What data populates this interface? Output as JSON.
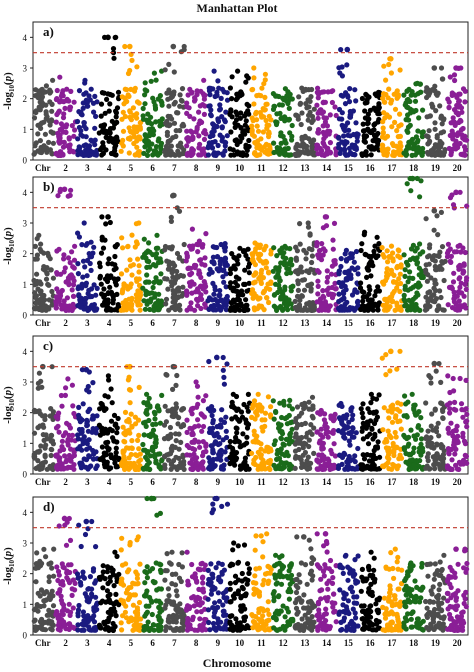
{
  "figure": {
    "title": "Manhattan Plot",
    "xlabel": "Chromosome"
  },
  "chart_data": {
    "type": "scatter",
    "chromosomes": [
      "1",
      "2",
      "3",
      "4",
      "5",
      "6",
      "7",
      "8",
      "9",
      "10",
      "11",
      "12",
      "13",
      "14",
      "15",
      "16",
      "17",
      "18",
      "19",
      "20"
    ],
    "chromosome_tick_labels": [
      "Chr",
      "2",
      "3",
      "4",
      "5",
      "6",
      "7",
      "8",
      "9",
      "10",
      "11",
      "12",
      "13",
      "14",
      "15",
      "16",
      "17",
      "18",
      "19",
      "20"
    ],
    "colors": [
      "#4d4d4d",
      "#8a1e96",
      "#1a1a80",
      "#000000",
      "#ffa500",
      "#1a6b1a"
    ],
    "color_cycle_order": [
      "grey",
      "purple",
      "navy",
      "black",
      "orange",
      "green"
    ],
    "ylabel": "-log10(p)",
    "ylim": [
      0,
      4.5
    ],
    "yticks": [
      0,
      1,
      2,
      3,
      4
    ],
    "threshold": 3.5,
    "threshold_style": "red dashed line",
    "panels": [
      {
        "label": "a)",
        "top_hits": [
          {
            "chromosome": "4",
            "value": 4.0
          },
          {
            "chromosome": "5",
            "value": 3.7
          },
          {
            "chromosome": "7",
            "value": 3.7
          },
          {
            "chromosome": "15",
            "value": 3.6
          },
          {
            "chromosome": "17",
            "value": 3.3
          },
          {
            "chromosome": "19",
            "value": 3.0
          },
          {
            "chromosome": "20",
            "value": 3.0
          }
        ],
        "chromosome_max": [
          2.6,
          2.7,
          2.6,
          4.0,
          3.7,
          2.9,
          3.7,
          2.6,
          2.9,
          2.9,
          3.0,
          2.2,
          2.3,
          2.2,
          3.6,
          2.1,
          3.3,
          2.5,
          3.0,
          3.0
        ]
      },
      {
        "label": "b)",
        "top_hits": [
          {
            "chromosome": "2",
            "value": 4.1
          },
          {
            "chromosome": "7",
            "value": 3.9
          },
          {
            "chromosome": "18",
            "value": 4.7
          },
          {
            "chromosome": "19",
            "value": 3.4
          },
          {
            "chromosome": "20",
            "value": 4.0
          },
          {
            "chromosome": "14",
            "value": 3.2
          },
          {
            "chromosome": "4",
            "value": 3.2
          }
        ],
        "chromosome_max": [
          2.6,
          4.1,
          3.0,
          3.2,
          3.0,
          2.6,
          3.9,
          2.8,
          2.2,
          2.1,
          2.2,
          2.1,
          3.0,
          3.2,
          2.0,
          2.7,
          2.1,
          4.7,
          3.4,
          4.0
        ]
      },
      {
        "label": "c)",
        "top_hits": [
          {
            "chromosome": "1",
            "value": 3.5
          },
          {
            "chromosome": "5",
            "value": 3.5
          },
          {
            "chromosome": "7",
            "value": 3.5
          },
          {
            "chromosome": "9",
            "value": 3.8
          },
          {
            "chromosome": "17",
            "value": 4.0
          },
          {
            "chromosome": "19",
            "value": 3.6
          },
          {
            "chromosome": "3",
            "value": 3.4
          }
        ],
        "chromosome_max": [
          3.5,
          3.1,
          3.4,
          3.2,
          3.5,
          2.6,
          3.5,
          3.0,
          3.8,
          2.6,
          2.6,
          2.4,
          2.5,
          2.0,
          2.3,
          2.6,
          4.0,
          2.6,
          3.6,
          3.2
        ]
      },
      {
        "label": "d)",
        "top_hits": [
          {
            "chromosome": "6",
            "value": 4.8
          },
          {
            "chromosome": "9",
            "value": 4.5
          },
          {
            "chromosome": "2",
            "value": 3.8
          },
          {
            "chromosome": "3",
            "value": 3.7
          },
          {
            "chromosome": "13",
            "value": 3.2
          },
          {
            "chromosome": "14",
            "value": 3.3
          },
          {
            "chromosome": "20",
            "value": 2.8
          }
        ],
        "chromosome_max": [
          2.8,
          3.8,
          3.7,
          2.7,
          3.2,
          4.8,
          2.7,
          2.7,
          4.5,
          3.0,
          3.3,
          2.6,
          3.2,
          3.3,
          2.6,
          2.7,
          2.8,
          2.3,
          2.6,
          2.8
        ]
      }
    ]
  }
}
